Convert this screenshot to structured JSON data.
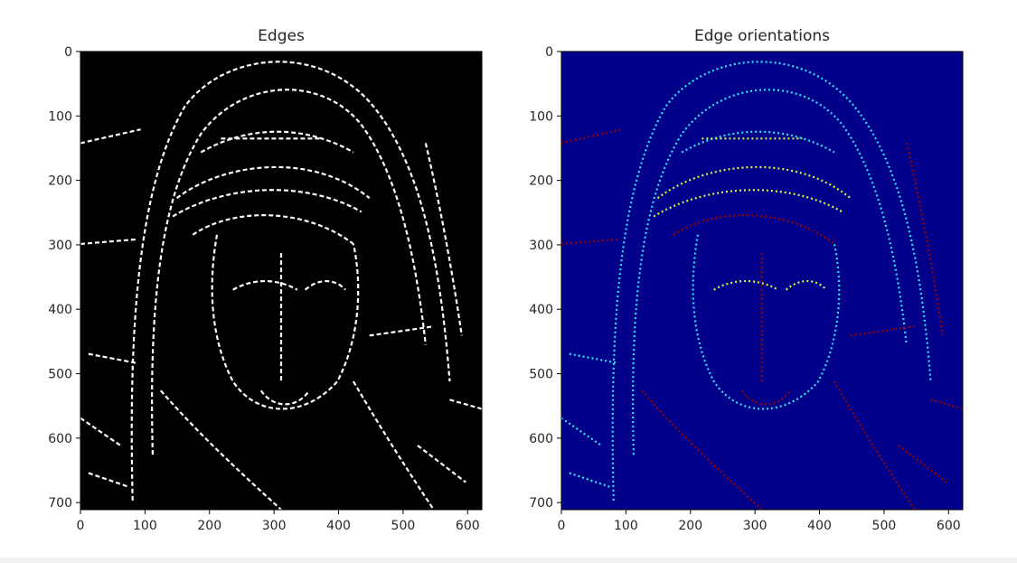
{
  "chart_data": [
    {
      "type": "heatmap",
      "title": "Edges",
      "xlabel": "",
      "ylabel": "",
      "xlim": [
        0,
        622
      ],
      "ylim": [
        711,
        0
      ],
      "xticks": [
        0,
        100,
        200,
        300,
        400,
        500,
        600
      ],
      "yticks": [
        0,
        100,
        200,
        300,
        400,
        500,
        600,
        700
      ],
      "colormap": "gray",
      "colors": {
        "background": "#000000",
        "foreground": "#ffffff"
      }
    },
    {
      "type": "heatmap",
      "title": "Edge orientations",
      "xlabel": "",
      "ylabel": "",
      "xlim": [
        0,
        622
      ],
      "ylim": [
        711,
        0
      ],
      "xticks": [
        0,
        100,
        200,
        300,
        400,
        500,
        600
      ],
      "yticks": [
        0,
        100,
        200,
        300,
        400,
        500,
        600,
        700
      ],
      "colormap": "jet",
      "colors": {
        "background": "#00008b",
        "cyan": "#29e6f0",
        "yellow": "#d6f542",
        "red": "#9a0000"
      }
    }
  ]
}
